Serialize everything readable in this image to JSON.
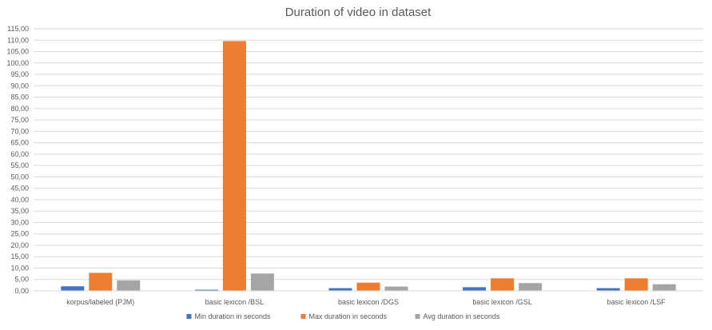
{
  "chart_data": {
    "type": "bar",
    "title": "Duration of video in dataset",
    "xlabel": "",
    "ylabel": "",
    "categories": [
      "korpus/labeled (PJM)",
      "basic lexicon /BSL",
      "basic lexicon /DGS",
      "basic lexicon /GSL",
      "basic lexicon /LSF"
    ],
    "series": [
      {
        "name": "Min duration in seconds",
        "color": "#4472C4",
        "values": [
          2.0,
          0.5,
          1.2,
          1.6,
          1.2
        ]
      },
      {
        "name": "Max duration in seconds",
        "color": "#ED7D31",
        "values": [
          7.9,
          109.6,
          3.6,
          5.5,
          5.5
        ]
      },
      {
        "name": "Avg duration in seconds",
        "color": "#A5A5A5",
        "values": [
          4.6,
          7.6,
          1.9,
          3.4,
          2.9
        ]
      }
    ],
    "ylim": [
      0,
      115
    ],
    "ytick_step": 5,
    "ytick_labels": [
      "0,00",
      "5,00",
      "10,00",
      "15,00",
      "20,00",
      "25,00",
      "30,00",
      "35,00",
      "40,00",
      "45,00",
      "50,00",
      "55,00",
      "60,00",
      "65,00",
      "70,00",
      "75,00",
      "80,00",
      "85,00",
      "90,00",
      "95,00",
      "100,00",
      "105,00",
      "110,00",
      "115,00"
    ],
    "grid": true,
    "legend_position": "bottom"
  }
}
